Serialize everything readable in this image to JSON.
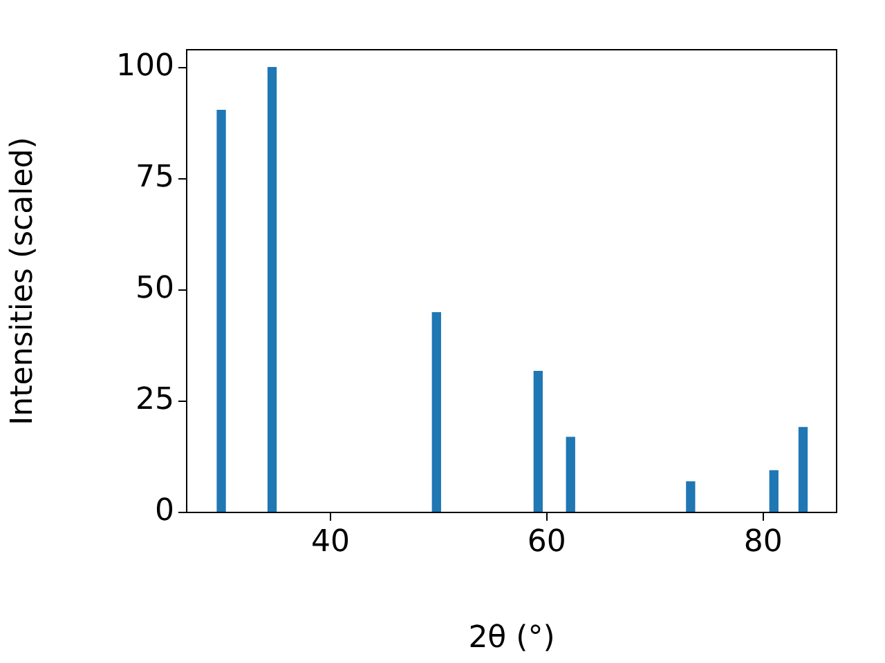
{
  "chart_data": {
    "type": "bar",
    "xlabel": "2θ (°)",
    "ylabel": "Intensities (scaled)",
    "x": [
      29.9,
      34.6,
      49.8,
      59.2,
      62.2,
      73.3,
      81.0,
      83.7
    ],
    "series": [
      {
        "color": "#1f77b4",
        "values": [
          90.4,
          100,
          44.9,
          31.7,
          16.9,
          6.9,
          9.4,
          19.1
        ]
      }
    ],
    "xlim": [
      26.7,
      86.8
    ],
    "xticks": [
      40,
      60,
      80
    ],
    "ylim": [
      0,
      104
    ],
    "yticks": [
      0,
      25,
      50,
      75,
      100
    ],
    "grid": false,
    "legend": false
  }
}
